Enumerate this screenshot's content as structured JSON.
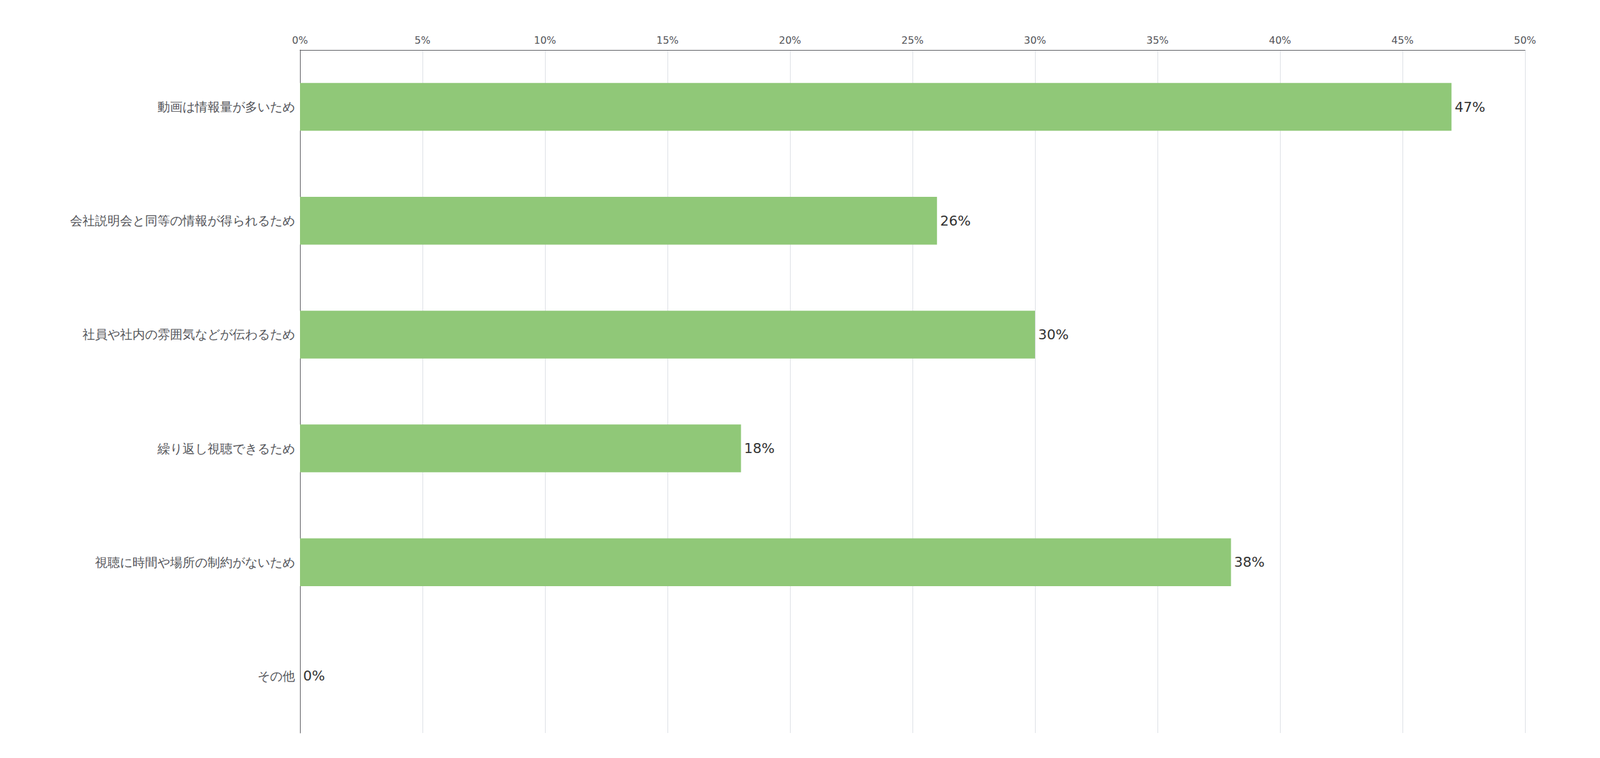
{
  "chart_data": {
    "type": "bar",
    "orientation": "horizontal",
    "categories": [
      "動画は情報量が多いため",
      "会社説明会と同等の情報が得られるため",
      "社員や社内の雰囲気などが伝わるため",
      "繰り返し視聴できるため",
      "視聴に時間や場所の制約がないため",
      "その他"
    ],
    "values": [
      47,
      26,
      30,
      18,
      38,
      0
    ],
    "value_labels": [
      "47%",
      "26%",
      "30%",
      "18%",
      "38%",
      "0%"
    ],
    "data_labels": true,
    "color": "#90c878",
    "xlim": [
      0,
      50
    ],
    "xticks": [
      {
        "value": 0,
        "label": "0%"
      },
      {
        "value": 5,
        "label": "5%"
      },
      {
        "value": 10,
        "label": "10%"
      },
      {
        "value": 15,
        "label": "15%"
      },
      {
        "value": 20,
        "label": "20%"
      },
      {
        "value": 25,
        "label": "25%"
      },
      {
        "value": 30,
        "label": "30%"
      },
      {
        "value": 35,
        "label": "35%"
      },
      {
        "value": 40,
        "label": "40%"
      },
      {
        "value": 45,
        "label": "45%"
      },
      {
        "value": 50,
        "label": "50%"
      }
    ],
    "grid": true
  }
}
